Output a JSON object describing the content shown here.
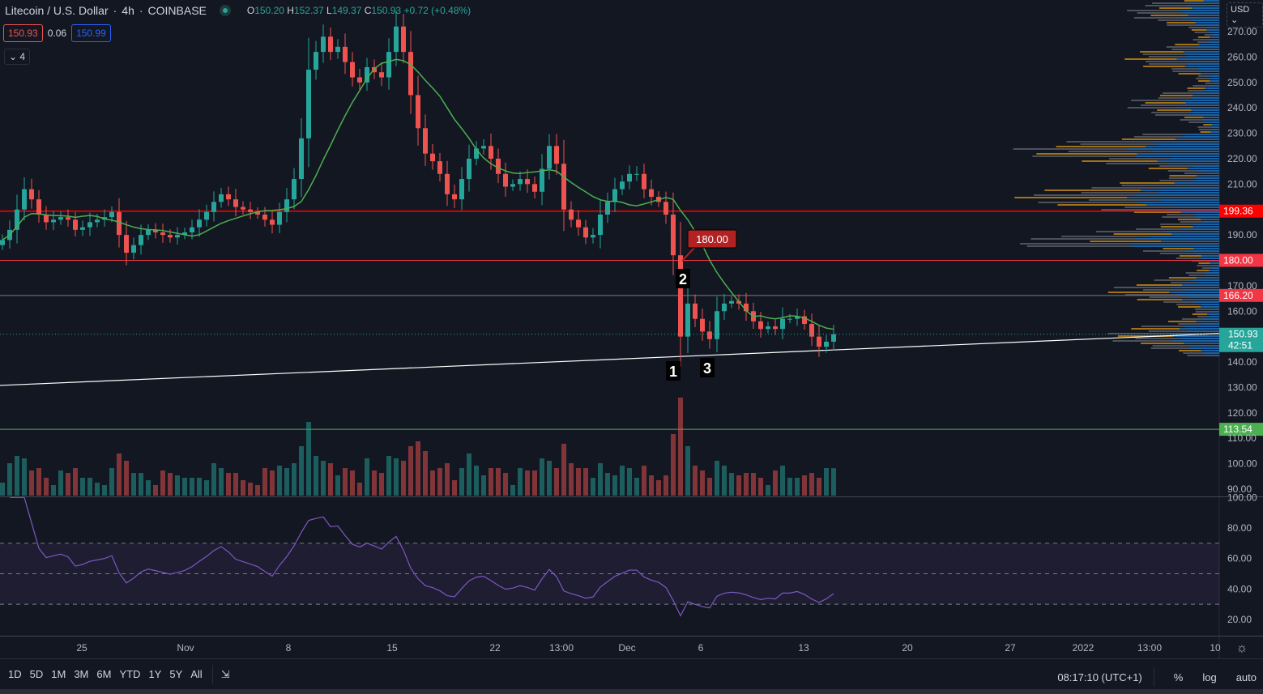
{
  "header": {
    "symbol": "Litecoin / U.S. Dollar",
    "interval": "4h",
    "exchange": "COINBASE",
    "open_label": "O",
    "open": "150.20",
    "high_label": "H",
    "high": "152.37",
    "low_label": "L",
    "low": "149.37",
    "close_label": "C",
    "close": "150.93",
    "change": "+0.72 (+0.48%)"
  },
  "quote": {
    "bid": "150.93",
    "spread": "0.06",
    "ask": "150.99"
  },
  "indicators_toggle": {
    "icon": "chevron-down-icon",
    "count": "4"
  },
  "currency": "USD",
  "toolbar": {
    "ranges": [
      "1D",
      "5D",
      "1M",
      "3M",
      "6M",
      "YTD",
      "1Y",
      "5Y",
      "All"
    ],
    "goto_icon": "calendar-goto-icon",
    "clock": "08:17:10 (UTC+1)",
    "percent": "%",
    "log": "log",
    "auto": "auto"
  },
  "colors": {
    "up": "#26a69a",
    "down": "#ef5350",
    "ma": "#4caf50",
    "rsi": "#7e57c2",
    "background": "#131722"
  },
  "chart_data": {
    "type": "candlestick",
    "price_axis": {
      "range": [
        90,
        270
      ],
      "ticks": [
        "270.00",
        "260.00",
        "250.00",
        "240.00",
        "230.00",
        "220.00",
        "210.00",
        "190.00",
        "170.00",
        "160.00",
        "140.00",
        "130.00",
        "120.00",
        "110.00",
        "100.00",
        "90.00"
      ]
    },
    "time_axis": {
      "ticks": [
        "25",
        "Nov",
        "8",
        "15",
        "22",
        "13:00",
        "Dec",
        "6",
        "13",
        "20",
        "27",
        "2022",
        "13:00",
        "10"
      ]
    },
    "closes": [
      188,
      192,
      200,
      208,
      204,
      198,
      195,
      196,
      197,
      196,
      192,
      193,
      195,
      196,
      197,
      199,
      190,
      183,
      186,
      190,
      192,
      191,
      190,
      189,
      190,
      191,
      193,
      196,
      199,
      203,
      206,
      204,
      201,
      200,
      199,
      198,
      196,
      194,
      199,
      204,
      212,
      228,
      255,
      262,
      268,
      262,
      264,
      258,
      252,
      250,
      256,
      254,
      252,
      262,
      272,
      262,
      245,
      232,
      222,
      219,
      214,
      206,
      204,
      212,
      220,
      224,
      225,
      220,
      214,
      209,
      210,
      212,
      210,
      207,
      216,
      225,
      218,
      200,
      196,
      193,
      189,
      190,
      198,
      203,
      208,
      211,
      214,
      214,
      208,
      205,
      203,
      198,
      182,
      150,
      163,
      157,
      152,
      149,
      160,
      163,
      164,
      163,
      160,
      156,
      153,
      154,
      153,
      157,
      157,
      158,
      155,
      150,
      146,
      148,
      150.93
    ],
    "moving_average": {
      "type": "SMA",
      "length": "20"
    },
    "horizontal_lines": [
      {
        "price": "199.36",
        "color": "#ff0000"
      },
      {
        "price": "180.00",
        "color": "#f23645"
      },
      {
        "price": "166.20",
        "color": "#787b86",
        "label_color": "#f23645"
      },
      {
        "price": "113.54",
        "color": "#4caf50"
      }
    ],
    "current_price": {
      "price": "150.93",
      "countdown": "42:51",
      "color": "#26a69a"
    },
    "trendline": {
      "start_price": 130.8,
      "end_price": 151.2,
      "color": "#ffffff"
    },
    "callout": {
      "text": "180.00",
      "color": "#b22222"
    },
    "wave_labels": [
      "1",
      "2",
      "3"
    ],
    "rsi": {
      "length": "14",
      "ticks": [
        "100.00",
        "80.00",
        "60.00",
        "40.00",
        "20.00"
      ],
      "bands": [
        30,
        50,
        70
      ]
    }
  }
}
